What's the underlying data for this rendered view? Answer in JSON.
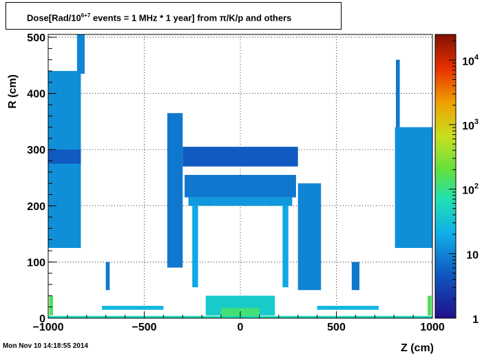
{
  "chart_data": {
    "type": "heatmap",
    "title": {
      "prefix": "Dose[Rad/10",
      "exponent": "6+7",
      "suffix": " events = 1 MHz * 1 year] from π/K/p and others"
    },
    "xlabel": "Z (cm)",
    "ylabel": "R (cm)",
    "xlim": [
      -1000,
      1000
    ],
    "ylim": [
      0,
      505
    ],
    "x_ticks": [
      -1000,
      -500,
      0,
      500,
      1000
    ],
    "x_tick_labels": [
      "−1000",
      "−500",
      "0",
      "500",
      "1000"
    ],
    "y_ticks": [
      0,
      100,
      200,
      300,
      400,
      500
    ],
    "y_tick_labels": [
      "0",
      "100",
      "200",
      "300",
      "400",
      "500"
    ],
    "grid": true,
    "z_scale": "log",
    "zlim": [
      1,
      25000
    ],
    "colorbar_ticks": [
      {
        "value": 1,
        "base": "1",
        "exp": ""
      },
      {
        "value": 10,
        "base": "10",
        "exp": ""
      },
      {
        "value": 100,
        "base": "10",
        "exp": "2"
      },
      {
        "value": 1000,
        "base": "10",
        "exp": "3"
      },
      {
        "value": 10000,
        "base": "10",
        "exp": "4"
      }
    ],
    "regions": [
      {
        "z": [
          -1000,
          -830
        ],
        "r": [
          125,
          440
        ],
        "dose": 12
      },
      {
        "z": [
          -850,
          -810
        ],
        "r": [
          435,
          505
        ],
        "dose": 10
      },
      {
        "z": [
          -1000,
          -830
        ],
        "r": [
          275,
          300
        ],
        "dose": 5
      },
      {
        "z": [
          -995,
          -975
        ],
        "r": [
          5,
          40
        ],
        "dose": 150
      },
      {
        "z": [
          -720,
          -400
        ],
        "r": [
          15,
          22
        ],
        "dose": 25
      },
      {
        "z": [
          -700,
          -680
        ],
        "r": [
          50,
          100
        ],
        "dose": 8
      },
      {
        "z": [
          -380,
          -300
        ],
        "r": [
          90,
          365
        ],
        "dose": 8
      },
      {
        "z": [
          -300,
          300
        ],
        "r": [
          270,
          305
        ],
        "dose": 5
      },
      {
        "z": [
          -290,
          290
        ],
        "r": [
          215,
          255
        ],
        "dose": 8
      },
      {
        "z": [
          -270,
          270
        ],
        "r": [
          200,
          215
        ],
        "dose": 14
      },
      {
        "z": [
          -250,
          -220
        ],
        "r": [
          55,
          200
        ],
        "dose": 18
      },
      {
        "z": [
          220,
          250
        ],
        "r": [
          55,
          200
        ],
        "dose": 18
      },
      {
        "z": [
          300,
          420
        ],
        "r": [
          50,
          240
        ],
        "dose": 10
      },
      {
        "z": [
          -180,
          180
        ],
        "r": [
          5,
          40
        ],
        "dose": 40
      },
      {
        "z": [
          -100,
          100
        ],
        "r": [
          0,
          18
        ],
        "dose": 120
      },
      {
        "z": [
          400,
          720
        ],
        "r": [
          15,
          22
        ],
        "dose": 25
      },
      {
        "z": [
          580,
          620
        ],
        "r": [
          50,
          100
        ],
        "dose": 8
      },
      {
        "z": [
          805,
          1000
        ],
        "r": [
          125,
          340
        ],
        "dose": 12
      },
      {
        "z": [
          810,
          830
        ],
        "r": [
          340,
          460
        ],
        "dose": 8
      },
      {
        "z": [
          975,
          995
        ],
        "r": [
          5,
          40
        ],
        "dose": 150
      },
      {
        "z": [
          -1000,
          1000
        ],
        "r": [
          0,
          4
        ],
        "dose": 60
      }
    ]
  },
  "timestamp": "Mon Nov 10 14:18:55 2014"
}
